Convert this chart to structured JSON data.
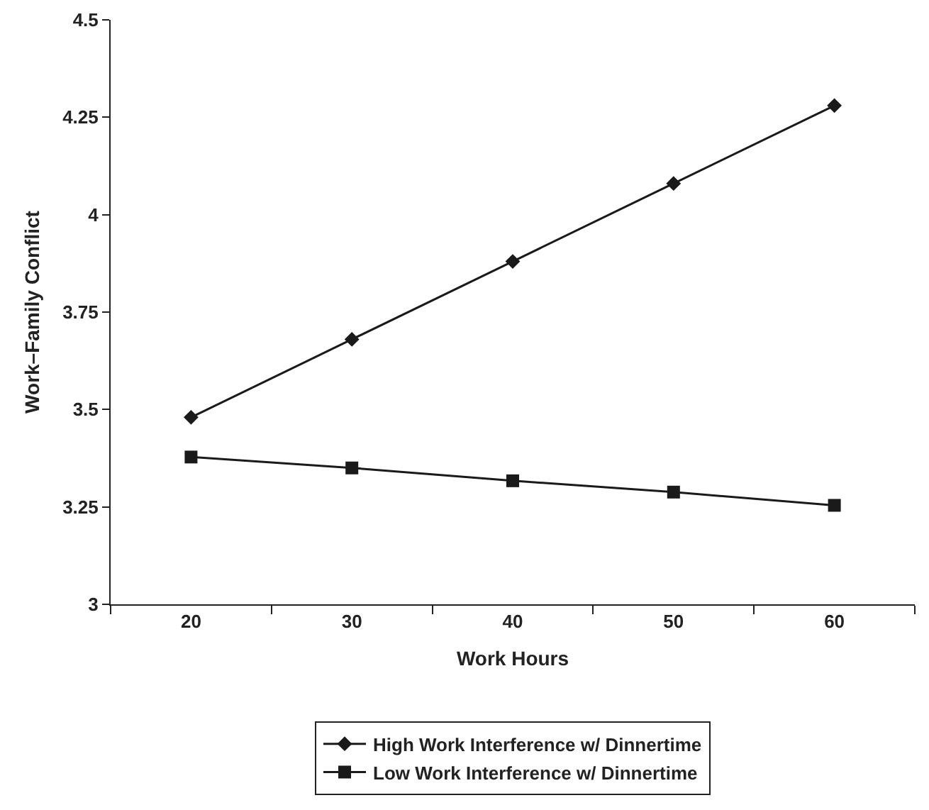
{
  "chart_data": {
    "type": "line",
    "xlabel": "Work Hours",
    "ylabel": "Work–Family Conflict",
    "categories": [
      "20",
      "30",
      "40",
      "50",
      "60"
    ],
    "series": [
      {
        "name": "High Work Interference w/ Dinnertime",
        "color": "#1a1a1a",
        "marker": "diamond",
        "values": [
          3.48,
          3.68,
          3.88,
          4.08,
          4.28
        ]
      },
      {
        "name": "Low Work Interference w/ Dinnertime",
        "color": "#1a1a1a",
        "marker": "square",
        "values": [
          3.378,
          3.35,
          3.317,
          3.288,
          3.254
        ]
      }
    ],
    "ylim": [
      3,
      4.5
    ],
    "yticks": [
      3,
      3.25,
      3.5,
      3.75,
      4,
      4.25,
      4.5
    ],
    "grid": false,
    "legend": "bottom",
    "line_style": "solid"
  }
}
